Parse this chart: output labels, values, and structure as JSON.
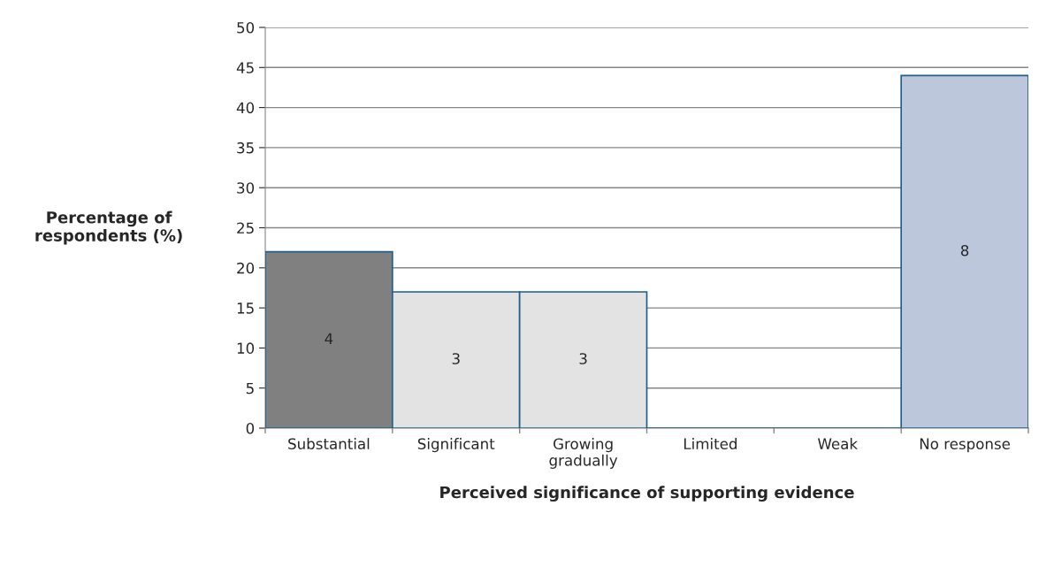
{
  "chart_data": {
    "type": "bar",
    "xlabel": "Perceived significance of supporting evidence",
    "ylabel": "Percentage of respondents (%)",
    "categories": [
      "Substantial",
      "Significant",
      "Growing\ngradually",
      "Limited",
      "Weak",
      "No response"
    ],
    "values": [
      22,
      17,
      17,
      0,
      0,
      44
    ],
    "colors": [
      "#808080",
      "#e3e3e3",
      "#e3e3e3",
      "#1f5f8b",
      "#1f5f8b",
      "#bcc7dc"
    ],
    "annotations": [
      "4",
      "3",
      "3",
      "8"
    ],
    "ylim": [
      0,
      50
    ],
    "yticks": [
      0,
      5,
      10,
      15,
      20,
      25,
      30,
      35,
      40,
      45,
      50
    ],
    "grid": "y",
    "legend": false
  }
}
